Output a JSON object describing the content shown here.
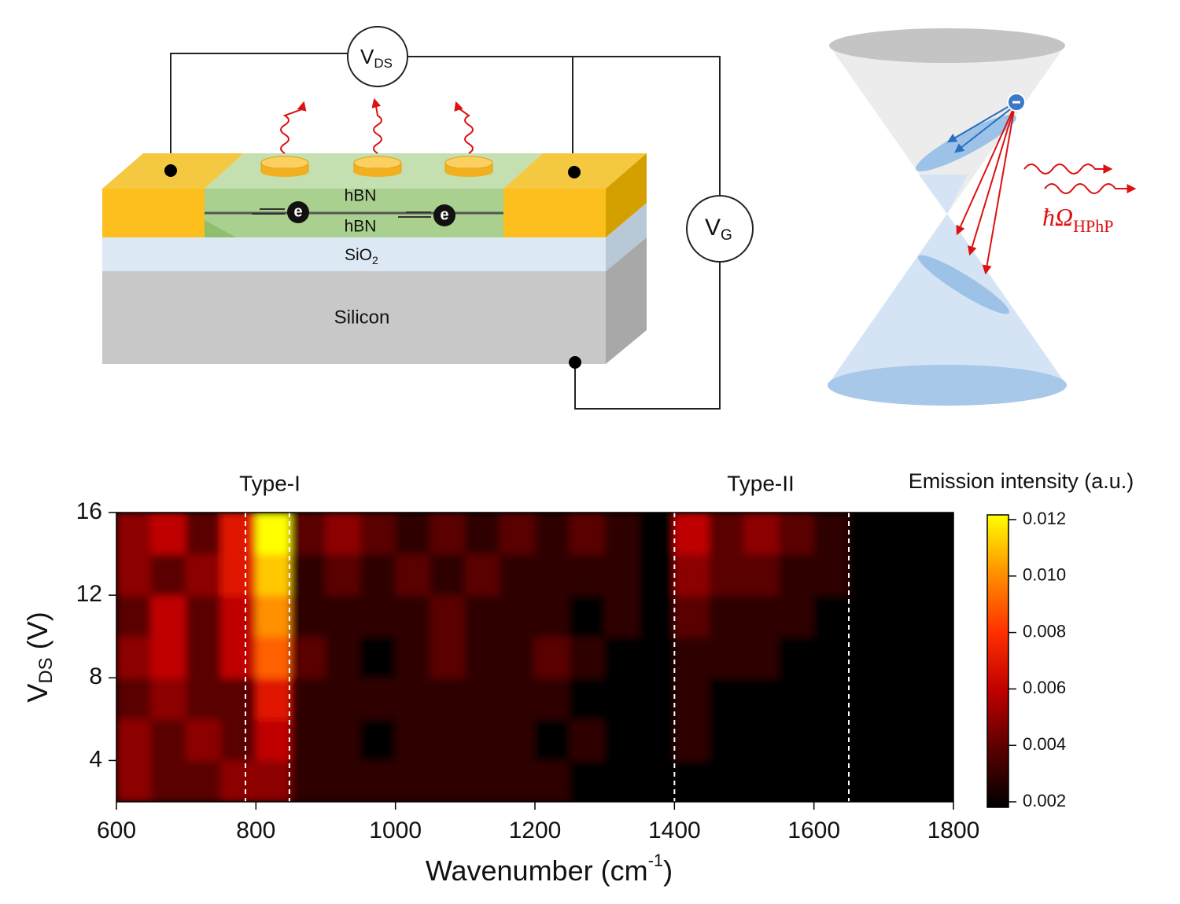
{
  "device": {
    "vds": {
      "main": "V",
      "sub": "DS"
    },
    "vg": {
      "main": "V",
      "sub": "G"
    },
    "electron_labels": [
      "e",
      "e"
    ],
    "layers": {
      "hbn_top": "hBN",
      "hbn_bottom": "hBN",
      "sio2": {
        "main": "SiO",
        "sub": "2"
      },
      "silicon": "Silicon"
    }
  },
  "cone": {
    "label": {
      "main": "ħΩ",
      "sub": "HPhP"
    }
  },
  "chart_data": {
    "type": "heatmap",
    "annotations": [
      "Type-I",
      "Type-II"
    ],
    "xlabel": {
      "main": "Wavenumber (cm",
      "sup": "-1",
      "rest": ")"
    },
    "ylabel": {
      "main": "V",
      "sub": "DS",
      "rest": " (V)"
    },
    "colorbar_label": "Emission intensity (a.u.)",
    "xlim": [
      600,
      1800
    ],
    "xticks": [
      600,
      800,
      1000,
      1200,
      1400,
      1600,
      1800
    ],
    "ylim": [
      2,
      16
    ],
    "yticks": [
      4,
      8,
      12,
      16
    ],
    "zlim": [
      0.002,
      0.012
    ],
    "zticks": [
      0.002,
      0.004,
      0.006,
      0.008,
      {
        "value": 0.01,
        "label": "0.010"
      },
      0.012
    ],
    "colormap": [
      "#000000",
      "#5a0000",
      "#c00000",
      "#ff3000",
      "#ff9000",
      "#ffff00"
    ],
    "dashed_lines": [
      785,
      848,
      1400,
      1650
    ],
    "xbins": [
      600,
      650,
      700,
      750,
      800,
      850,
      900,
      950,
      1000,
      1050,
      1100,
      1150,
      1200,
      1250,
      1300,
      1350,
      1400,
      1450,
      1500,
      1550,
      1600,
      1650,
      1700,
      1750,
      1800
    ],
    "ybins": [
      2,
      4,
      6,
      8,
      10,
      12,
      14,
      16
    ],
    "z": [
      [
        0.005,
        0.004,
        0.004,
        0.005,
        0.005,
        0.003,
        0.003,
        0.003,
        0.003,
        0.003,
        0.003,
        0.003,
        0.003,
        0.002,
        0.002,
        0.002,
        0.002,
        0.002,
        0.002,
        0.002,
        0.002,
        0.002,
        0.002,
        0.002
      ],
      [
        0.005,
        0.004,
        0.005,
        0.004,
        0.006,
        0.003,
        0.003,
        0.002,
        0.003,
        0.003,
        0.003,
        0.003,
        0.002,
        0.003,
        0.002,
        0.002,
        0.003,
        0.002,
        0.002,
        0.002,
        0.002,
        0.002,
        0.002,
        0.002
      ],
      [
        0.004,
        0.005,
        0.004,
        0.004,
        0.007,
        0.003,
        0.003,
        0.003,
        0.003,
        0.003,
        0.003,
        0.003,
        0.003,
        0.002,
        0.002,
        0.002,
        0.003,
        0.002,
        0.002,
        0.002,
        0.002,
        0.002,
        0.002,
        0.002
      ],
      [
        0.005,
        0.006,
        0.004,
        0.006,
        0.009,
        0.004,
        0.003,
        0.002,
        0.003,
        0.004,
        0.003,
        0.003,
        0.004,
        0.003,
        0.002,
        0.002,
        0.003,
        0.003,
        0.003,
        0.002,
        0.002,
        0.002,
        0.002,
        0.002
      ],
      [
        0.004,
        0.006,
        0.004,
        0.006,
        0.01,
        0.003,
        0.003,
        0.003,
        0.003,
        0.004,
        0.003,
        0.003,
        0.003,
        0.002,
        0.003,
        0.002,
        0.004,
        0.003,
        0.003,
        0.003,
        0.002,
        0.002,
        0.002,
        0.002
      ],
      [
        0.005,
        0.004,
        0.005,
        0.007,
        0.011,
        0.003,
        0.004,
        0.003,
        0.004,
        0.003,
        0.004,
        0.003,
        0.003,
        0.003,
        0.003,
        0.002,
        0.005,
        0.004,
        0.004,
        0.003,
        0.003,
        0.002,
        0.002,
        0.002
      ],
      [
        0.005,
        0.006,
        0.004,
        0.007,
        0.012,
        0.004,
        0.005,
        0.004,
        0.003,
        0.004,
        0.003,
        0.004,
        0.003,
        0.004,
        0.003,
        0.002,
        0.006,
        0.004,
        0.005,
        0.004,
        0.003,
        0.002,
        0.002,
        0.002
      ]
    ]
  }
}
